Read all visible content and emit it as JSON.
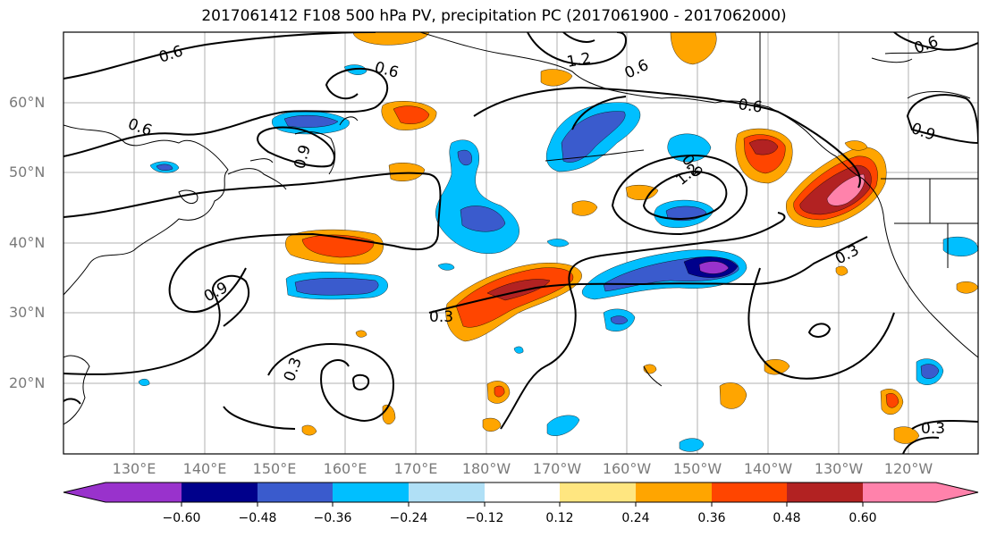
{
  "title": "2017061412 F108 500 hPa PV, precipitation PC (2017061900 - 2017062000)",
  "map": {
    "lat_labels": [
      "60°N",
      "50°N",
      "40°N",
      "30°N",
      "20°N"
    ],
    "lon_labels": [
      "130°E",
      "140°E",
      "150°E",
      "160°E",
      "170°E",
      "180°W",
      "170°W",
      "160°W",
      "150°W",
      "140°W",
      "130°W",
      "120°W"
    ],
    "pv_contour_labels": [
      "0.6",
      "0.6",
      "0.6",
      "0.6",
      "0.6",
      "0.6",
      "0.9",
      "0.9",
      "0.9",
      "0.9",
      "1.2",
      "1.2",
      "0.3",
      "0.3",
      "0.3",
      "0.3"
    ]
  },
  "colorbar": {
    "colors": [
      "#9932cc",
      "#00008b",
      "#3a5bcd",
      "#00bfff",
      "#b0e0f6",
      "#ffffff",
      "#ffe680",
      "#ffa500",
      "#ff4500",
      "#b22222",
      "#ff82ab"
    ],
    "tick_labels": [
      "−0.60",
      "−0.48",
      "−0.36",
      "−0.24",
      "−0.12",
      "0.12",
      "0.24",
      "0.36",
      "0.48",
      "0.60"
    ]
  }
}
